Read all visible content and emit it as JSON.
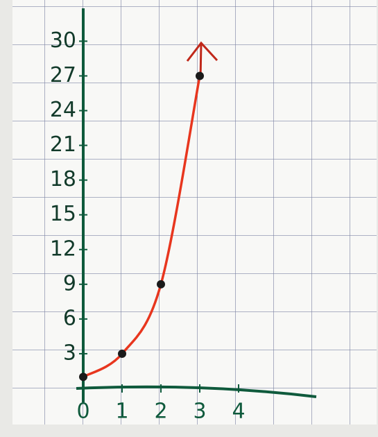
{
  "chart_data": {
    "type": "line",
    "x": [
      0,
      1,
      2,
      3
    ],
    "values": [
      1,
      3,
      9,
      27
    ],
    "color": "#e8361e",
    "marker_color": "#1a1a1a",
    "axis_color": "#0f5a3c",
    "xlim": [
      0,
      6
    ],
    "ylim": [
      0,
      32
    ],
    "xticks": [
      0,
      1,
      2,
      3,
      4
    ],
    "yticks": [
      3,
      6,
      9,
      12,
      15,
      18,
      21,
      24,
      27,
      30
    ]
  }
}
